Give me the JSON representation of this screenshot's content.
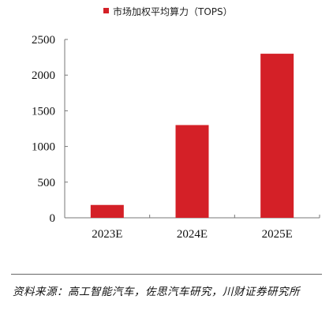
{
  "chart_data": {
    "type": "bar",
    "title": "",
    "xlabel": "",
    "ylabel": "",
    "legend": {
      "entries": [
        "市场加权平均算力（TOPS）"
      ],
      "placement": "top-center"
    },
    "categories": [
      "2023E",
      "2024E",
      "2025E"
    ],
    "series": [
      {
        "name": "市场加权平均算力（TOPS）",
        "values": [
          180,
          1300,
          2300
        ],
        "color": "#d42027"
      }
    ],
    "ylim": [
      0,
      2500
    ],
    "yticks": [
      0,
      500,
      1000,
      1500,
      2000,
      2500
    ],
    "grid": false
  },
  "footer": {
    "source_text": "资料来源：高工智能汽车，佐思汽车研究，川财证券研究所"
  },
  "colors": {
    "bar": "#d42027",
    "axis": "#777777",
    "divider": "#666666"
  }
}
